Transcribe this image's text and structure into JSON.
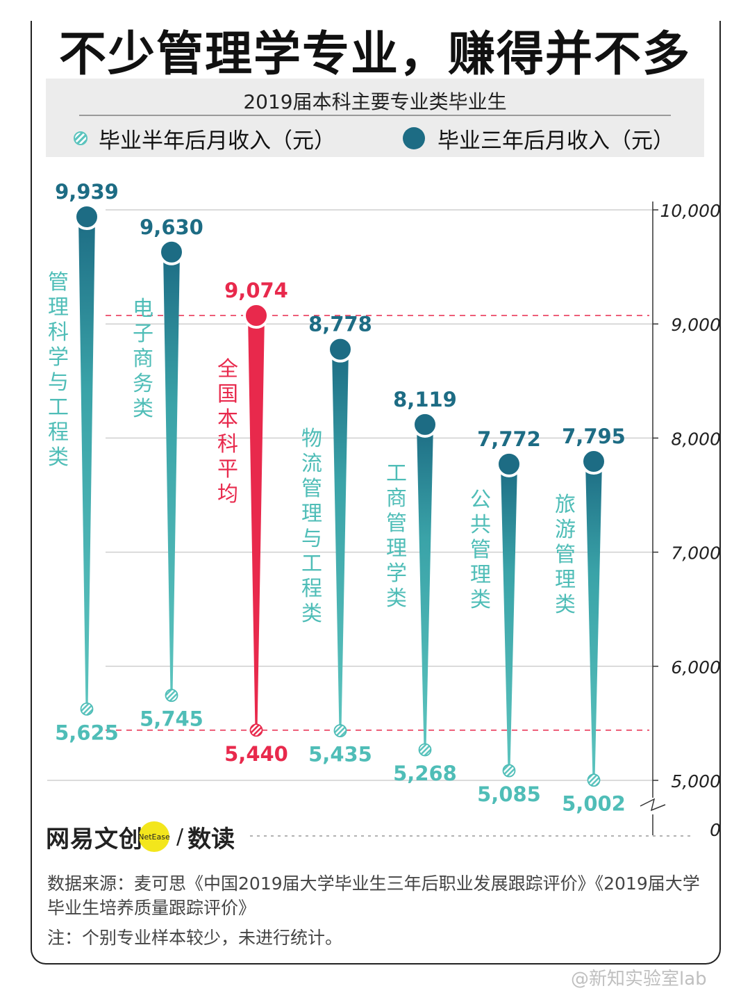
{
  "title": "不少管理学专业，赚得并不多",
  "legend": {
    "title": "2019届本科主要专业类毕业生",
    "half_year": "毕业半年后月收入（元）",
    "three_year": "毕业三年后月收入（元）"
  },
  "colors": {
    "teal": "#4fbdb7",
    "dark_teal": "#1d6c84",
    "red": "#e8294c",
    "grid": "#cfcfcf"
  },
  "chart_data": {
    "type": "bar",
    "categories": [
      "管理科学与工程类",
      "电子商务类",
      "全国本科平均",
      "物流管理与工程类",
      "工商管理学类",
      "公共管理类",
      "旅游管理类"
    ],
    "series": [
      {
        "name": "毕业半年后月收入（元）",
        "values": [
          5625,
          5745,
          5440,
          5435,
          5268,
          5085,
          5002
        ]
      },
      {
        "name": "毕业三年后月收入（元）",
        "values": [
          9939,
          9630,
          9074,
          8778,
          8119,
          7772,
          7795
        ]
      }
    ],
    "value_labels_half": [
      "5,625",
      "5,745",
      "5,440",
      "5,435",
      "5,268",
      "5,085",
      "5,002"
    ],
    "value_labels_three": [
      "9,939",
      "9,630",
      "9,074",
      "8,778",
      "8,119",
      "7,772",
      "7,795"
    ],
    "highlight_index": 2,
    "yticks": [
      5000,
      6000,
      7000,
      8000,
      9000,
      10000
    ],
    "ytick_labels": [
      "5,000",
      "6,000",
      "7,000",
      "8,000",
      "9,000",
      "10,000"
    ],
    "y_zero_label": "0",
    "ylim": [
      5000,
      10000
    ],
    "axis_break": true,
    "grid": true
  },
  "brand": {
    "name": "网易文创",
    "dot": "NetEase",
    "slash": "/",
    "sub": "数读"
  },
  "source": "数据来源：麦可思《中国2019届大学毕业生三年后职业发展跟踪评价》《2019届大学毕业生培养质量跟踪评价》",
  "note": "注：个别专业样本较少，未进行统计。",
  "watermark": "@新知实验室lab"
}
